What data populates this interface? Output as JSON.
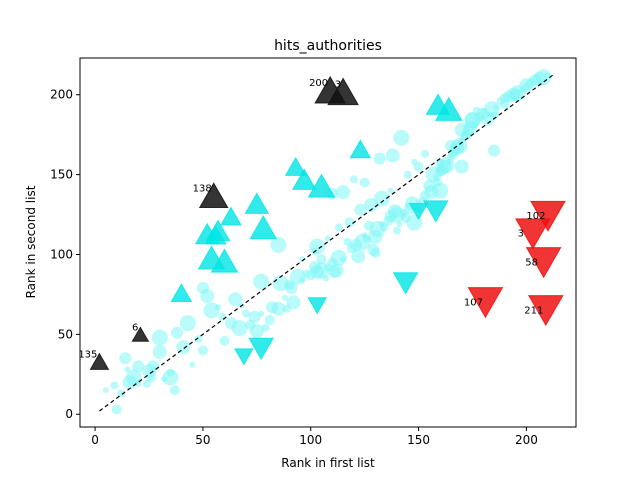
{
  "chart_data": {
    "type": "scatter",
    "title": "hits_authorities",
    "xlabel": "Rank in first list",
    "ylabel": "Rank in second list",
    "xlim": [
      -7,
      223
    ],
    "ylim": [
      -8,
      223
    ],
    "xticks": [
      0,
      50,
      100,
      150,
      200
    ],
    "yticks": [
      0,
      50,
      100,
      150,
      200
    ],
    "grid": false,
    "legend": "none",
    "diagonal": {
      "from": [
        2,
        2
      ],
      "to": [
        213,
        213
      ],
      "style": "dashed",
      "color": "#000000"
    },
    "colors": {
      "cluster": "#7ff5f5",
      "up": "#00e5e5",
      "down": "#00e5e5",
      "top_annotated": "#111111",
      "bottom_annotated": "#ee1111"
    },
    "cluster_points": [
      [
        5,
        15
      ],
      [
        9,
        18
      ],
      [
        10,
        3
      ],
      [
        14,
        35
      ],
      [
        16,
        20
      ],
      [
        18,
        23
      ],
      [
        20,
        19
      ],
      [
        24,
        19
      ],
      [
        26,
        23
      ],
      [
        27,
        30
      ],
      [
        30,
        39
      ],
      [
        30,
        48
      ],
      [
        32,
        22
      ],
      [
        35,
        26
      ],
      [
        37,
        15
      ],
      [
        38,
        51
      ],
      [
        41,
        42
      ],
      [
        43,
        57
      ],
      [
        45,
        31
      ],
      [
        48,
        47
      ],
      [
        50,
        40
      ],
      [
        50,
        79
      ],
      [
        52,
        74
      ],
      [
        54,
        65
      ],
      [
        57,
        67
      ],
      [
        59,
        61
      ],
      [
        60,
        46
      ],
      [
        63,
        57
      ],
      [
        65,
        72
      ],
      [
        67,
        54
      ],
      [
        68,
        68
      ],
      [
        70,
        63
      ],
      [
        72,
        56
      ],
      [
        74,
        61
      ],
      [
        75,
        52
      ],
      [
        77,
        83
      ],
      [
        77,
        63
      ],
      [
        79,
        54
      ],
      [
        81,
        59
      ],
      [
        82,
        67
      ],
      [
        85,
        66
      ],
      [
        86,
        82
      ],
      [
        88,
        73
      ],
      [
        89,
        66
      ],
      [
        90,
        81
      ],
      [
        91,
        79
      ],
      [
        92,
        70
      ],
      [
        94,
        86
      ],
      [
        96,
        84
      ],
      [
        98,
        88
      ],
      [
        100,
        87
      ],
      [
        102,
        92
      ],
      [
        103,
        89
      ],
      [
        105,
        90
      ],
      [
        107,
        85
      ],
      [
        108,
        92
      ],
      [
        110,
        95
      ],
      [
        111,
        89
      ],
      [
        112,
        90
      ],
      [
        113,
        98
      ],
      [
        115,
        97
      ],
      [
        117,
        108
      ],
      [
        119,
        104
      ],
      [
        121,
        106
      ],
      [
        122,
        99
      ],
      [
        124,
        108
      ],
      [
        125,
        112
      ],
      [
        126,
        110
      ],
      [
        127,
        118
      ],
      [
        129,
        103
      ],
      [
        130,
        111
      ],
      [
        131,
        116
      ],
      [
        133,
        119
      ],
      [
        134,
        117
      ],
      [
        136,
        121
      ],
      [
        137,
        124
      ],
      [
        139,
        127
      ],
      [
        140,
        125
      ],
      [
        141,
        119
      ],
      [
        143,
        126
      ],
      [
        144,
        123
      ],
      [
        146,
        129
      ],
      [
        147,
        132
      ],
      [
        148,
        120
      ],
      [
        150,
        133
      ],
      [
        152,
        134
      ],
      [
        153,
        137
      ],
      [
        155,
        143
      ],
      [
        156,
        139
      ],
      [
        157,
        150
      ],
      [
        158,
        148
      ],
      [
        159,
        145
      ],
      [
        160,
        152
      ],
      [
        161,
        153
      ],
      [
        162,
        155
      ],
      [
        163,
        156
      ],
      [
        164,
        158
      ],
      [
        165,
        161
      ],
      [
        166,
        163
      ],
      [
        167,
        165
      ],
      [
        168,
        167
      ],
      [
        169,
        168
      ],
      [
        170,
        171
      ],
      [
        171,
        174
      ],
      [
        172,
        175
      ],
      [
        173,
        177
      ],
      [
        174,
        179
      ],
      [
        175,
        184
      ],
      [
        176,
        181
      ],
      [
        177,
        190
      ],
      [
        178,
        186
      ],
      [
        180,
        188
      ],
      [
        182,
        185
      ],
      [
        184,
        191
      ],
      [
        186,
        192
      ],
      [
        188,
        196
      ],
      [
        190,
        198
      ],
      [
        192,
        199
      ],
      [
        194,
        200
      ],
      [
        196,
        201
      ],
      [
        198,
        203
      ],
      [
        200,
        205
      ],
      [
        202,
        207
      ],
      [
        204,
        209
      ],
      [
        206,
        210
      ],
      [
        208,
        211
      ],
      [
        210,
        212
      ],
      [
        120,
        147
      ],
      [
        125,
        145
      ],
      [
        132,
        160
      ],
      [
        138,
        162
      ],
      [
        142,
        173
      ],
      [
        148,
        158
      ],
      [
        153,
        163
      ],
      [
        160,
        157
      ],
      [
        165,
        168
      ],
      [
        170,
        178
      ],
      [
        175,
        184
      ],
      [
        180,
        190
      ],
      [
        185,
        187
      ],
      [
        190,
        194
      ],
      [
        195,
        200
      ],
      [
        200,
        206
      ],
      [
        103,
        105
      ],
      [
        108,
        110
      ],
      [
        113,
        117
      ],
      [
        118,
        120
      ],
      [
        123,
        128
      ],
      [
        128,
        131
      ],
      [
        133,
        135
      ],
      [
        137,
        140
      ],
      [
        145,
        150
      ],
      [
        150,
        155
      ],
      [
        185,
        165
      ],
      [
        170,
        155
      ],
      [
        160,
        140
      ],
      [
        150,
        128
      ],
      [
        140,
        115
      ],
      [
        130,
        101
      ],
      [
        110,
        138
      ],
      [
        115,
        139
      ],
      [
        85,
        106
      ],
      [
        96,
        97
      ],
      [
        102,
        102
      ],
      [
        105,
        97
      ],
      [
        20,
        30
      ],
      [
        25,
        27
      ],
      [
        35,
        23
      ],
      [
        15,
        28
      ],
      [
        12,
        13
      ]
    ],
    "up_triangles": [
      [
        40,
        76
      ],
      [
        52,
        113
      ],
      [
        54,
        98
      ],
      [
        56,
        112
      ],
      [
        57,
        115
      ],
      [
        60,
        96
      ],
      [
        63,
        124
      ],
      [
        75,
        132
      ],
      [
        78,
        117
      ],
      [
        93,
        155
      ],
      [
        97,
        147
      ],
      [
        105,
        143
      ],
      [
        123,
        166
      ],
      [
        159,
        194
      ],
      [
        164,
        191
      ]
    ],
    "down_triangles": [
      [
        69,
        36
      ],
      [
        77,
        41
      ],
      [
        103,
        68
      ],
      [
        144,
        82
      ],
      [
        150,
        127
      ],
      [
        158,
        127
      ]
    ],
    "top_annotated": [
      {
        "x": 2,
        "y": 33,
        "label": "135"
      },
      {
        "x": 21,
        "y": 50,
        "label": "6"
      },
      {
        "x": 55,
        "y": 137,
        "label": "138"
      },
      {
        "x": 109,
        "y": 203,
        "label": "200"
      },
      {
        "x": 115,
        "y": 202,
        "label": "3"
      }
    ],
    "bottom_annotated": [
      {
        "x": 210,
        "y": 124,
        "label": "102"
      },
      {
        "x": 203,
        "y": 113,
        "label": "3"
      },
      {
        "x": 208,
        "y": 95,
        "label": "58"
      },
      {
        "x": 181,
        "y": 70,
        "label": "107"
      },
      {
        "x": 209,
        "y": 65,
        "label": "211"
      }
    ]
  }
}
